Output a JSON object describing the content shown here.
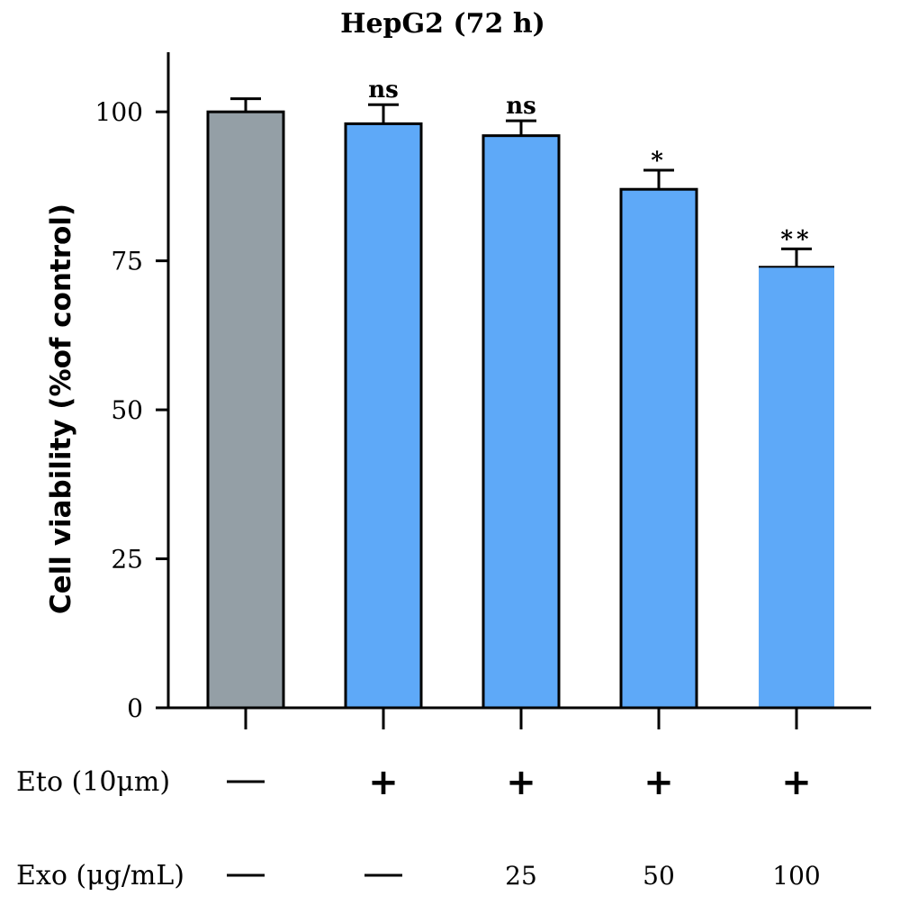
{
  "chart_data": {
    "type": "bar",
    "title": "HepG2 (72 h)",
    "ylabel": "Cell viability (%of control)",
    "ylim": [
      0,
      110
    ],
    "yticks": [
      0,
      25,
      50,
      75,
      100
    ],
    "values": [
      100,
      98,
      96,
      87,
      74
    ],
    "errors": [
      2.2,
      3.2,
      2.5,
      3.2,
      3.0
    ],
    "significance": [
      "",
      "ns",
      "ns",
      "*",
      "**"
    ],
    "bar_colors": [
      "#949fa6",
      "#5ea9f8",
      "#5ea9f8",
      "#5ea9f8",
      "#5ea9f8"
    ],
    "treatment_rows": [
      {
        "label": "Eto (10μm)",
        "values": [
          "—",
          "+",
          "+",
          "+",
          "+"
        ]
      },
      {
        "label": "Exo (μg/mL)",
        "values": [
          "—",
          "—",
          "25",
          "50",
          "100"
        ]
      }
    ]
  }
}
